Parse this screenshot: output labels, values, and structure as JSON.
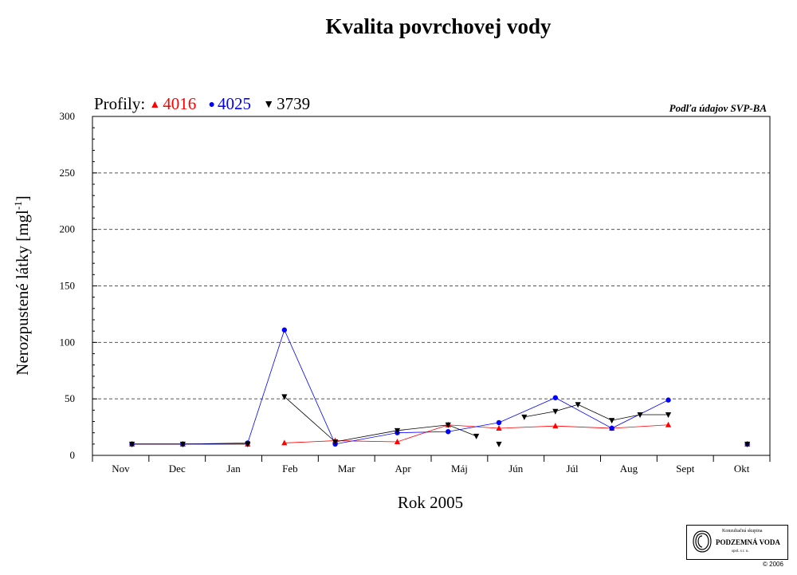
{
  "title": "Kvalita povrchovej vody",
  "legend": {
    "label": "Profily:",
    "items": [
      {
        "name": "4016",
        "color": "#ff0000",
        "marker": "▲"
      },
      {
        "name": "4025",
        "color": "#0000ff",
        "marker": "●"
      },
      {
        "name": "3739",
        "color": "#000000",
        "marker": "▼"
      }
    ]
  },
  "source_note": "Podľa údajov SVP-BA",
  "logo": {
    "line1": "Konzultačná skupina",
    "line2": "PODZEMNÁ VODA",
    "line3": "spol. s r. o.",
    "copyright": "© 2006"
  },
  "chart_data": {
    "type": "line",
    "title": "Kvalita povrchovej vody",
    "ylabel": "Nerozpustené látky [mgl-1]",
    "xlabel": "Rok 2005",
    "ylim": [
      0,
      300
    ],
    "yticks": [
      0,
      50,
      100,
      150,
      200,
      250,
      300
    ],
    "categories": [
      "Nov",
      "Dec",
      "Jan",
      "Feb",
      "Mar",
      "Apr",
      "Máj",
      "Jún",
      "Júl",
      "Aug",
      "Sept",
      "Okt"
    ],
    "xlim_months": [
      0,
      12
    ],
    "grid": "horizontal dashed",
    "series": [
      {
        "name": "4016",
        "color": "#ff0000",
        "marker": "triangle-up",
        "points": [
          [
            0.7,
            10
          ],
          [
            1.6,
            10
          ],
          [
            2.75,
            10
          ],
          [
            3.4,
            11
          ],
          [
            4.3,
            13
          ],
          [
            5.4,
            12
          ],
          [
            6.3,
            27
          ],
          [
            7.2,
            24
          ],
          [
            8.2,
            26
          ],
          [
            9.2,
            24
          ],
          [
            10.2,
            27
          ],
          [
            11.6,
            10
          ]
        ]
      },
      {
        "name": "4025",
        "color": "#0000ff",
        "marker": "circle",
        "points": [
          [
            0.7,
            10
          ],
          [
            1.6,
            10
          ],
          [
            2.75,
            11
          ],
          [
            3.4,
            111
          ],
          [
            4.3,
            10
          ],
          [
            5.4,
            20
          ],
          [
            6.3,
            21
          ],
          [
            7.2,
            29
          ],
          [
            8.2,
            51
          ],
          [
            9.2,
            24
          ],
          [
            10.2,
            49
          ],
          [
            11.6,
            10
          ]
        ]
      },
      {
        "name": "3739",
        "color": "#000000",
        "marker": "triangle-down",
        "points": [
          [
            0.7,
            10
          ],
          [
            1.6,
            10
          ],
          [
            2.75,
            10
          ],
          [
            3.4,
            52
          ],
          [
            4.3,
            12
          ],
          [
            5.4,
            22
          ],
          [
            6.3,
            27
          ],
          [
            6.8,
            17
          ],
          [
            7.2,
            10
          ],
          [
            7.65,
            34
          ],
          [
            8.2,
            39
          ],
          [
            8.6,
            45
          ],
          [
            9.2,
            31
          ],
          [
            9.7,
            36
          ],
          [
            10.2,
            36
          ],
          [
            11.6,
            10
          ]
        ]
      }
    ],
    "segments": [
      {
        "series": "4016",
        "ranges": [
          [
            0,
            2
          ],
          [
            3,
            10
          ]
        ]
      },
      {
        "series": "4025",
        "ranges": [
          [
            0,
            10
          ]
        ]
      },
      {
        "series": "3739",
        "ranges": [
          [
            0,
            2
          ],
          [
            3,
            7
          ],
          [
            9,
            14
          ]
        ]
      }
    ]
  }
}
